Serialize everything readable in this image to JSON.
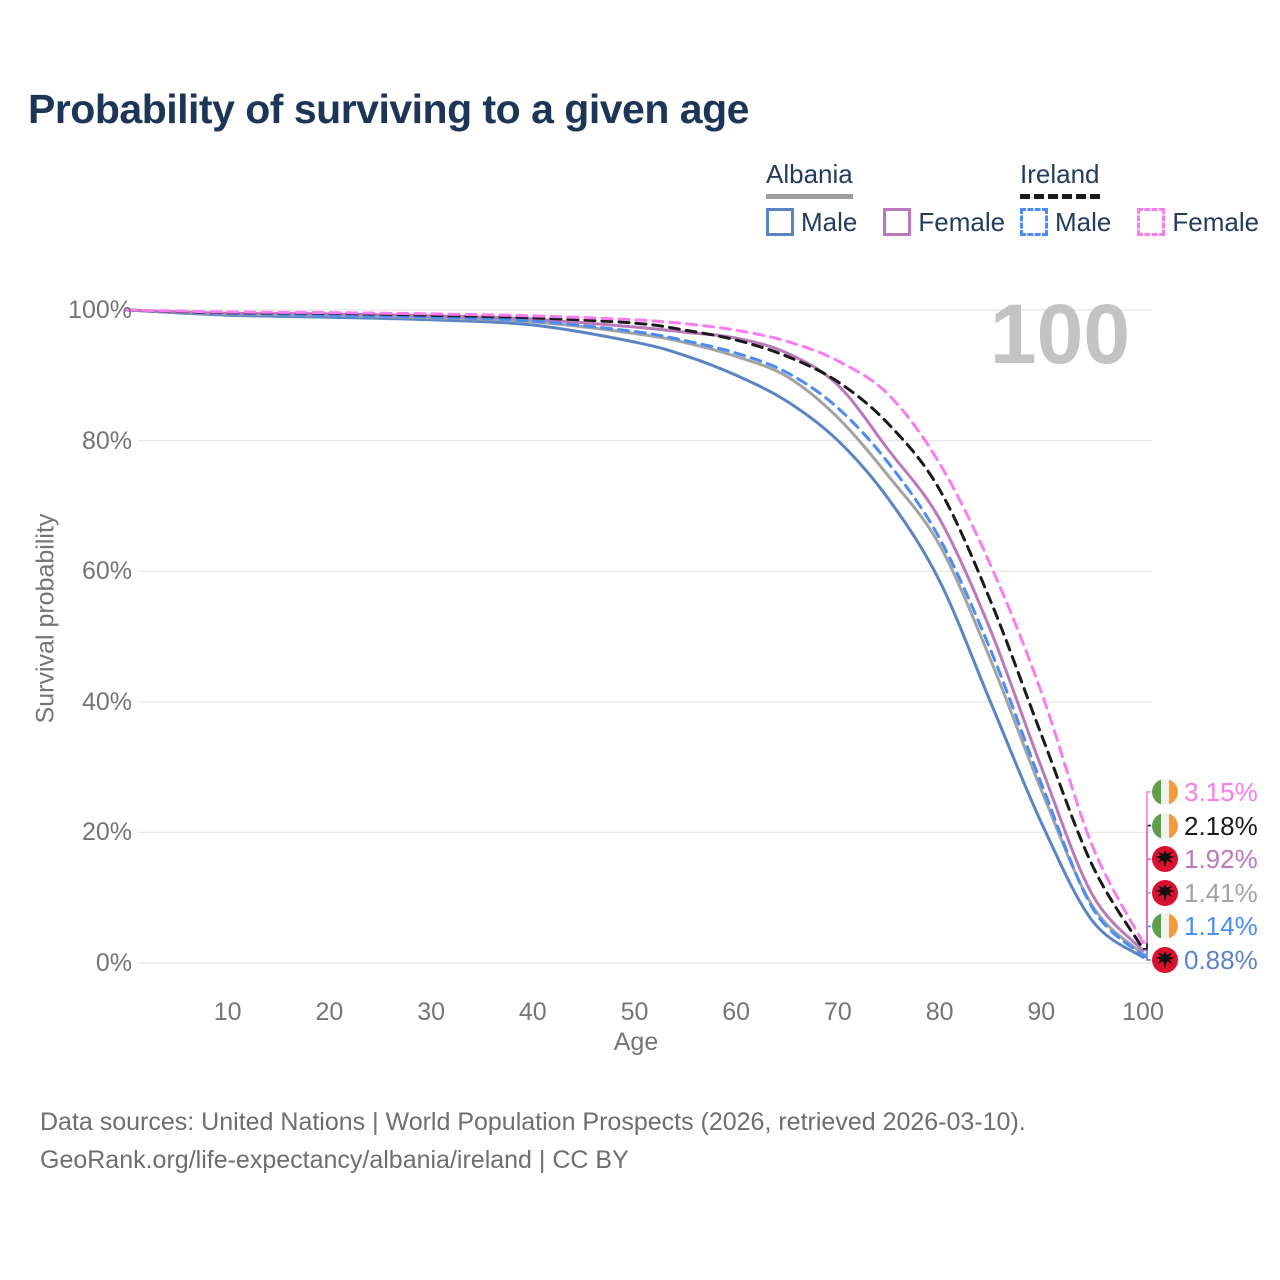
{
  "title": "Probability of surviving to a given age",
  "watermark_age": "100",
  "legend": {
    "groups": [
      {
        "country": "Albania",
        "line_style": "solid",
        "underline_color": "#9e9e9e",
        "items": [
          {
            "label": "Male",
            "color": "#5b84c4",
            "dash": false
          },
          {
            "label": "Female",
            "color": "#bb79bb",
            "dash": false
          }
        ]
      },
      {
        "country": "Ireland",
        "line_style": "dashed",
        "underline_color": "#1b1b1b",
        "items": [
          {
            "label": "Male",
            "color": "#4a8df7",
            "dash": true
          },
          {
            "label": "Female",
            "color": "#fb7cf0",
            "dash": true
          }
        ]
      }
    ]
  },
  "axes": {
    "x_label": "Age",
    "y_label": "Survival probability",
    "x_ticks": [
      "10",
      "20",
      "30",
      "40",
      "50",
      "60",
      "70",
      "80",
      "90",
      "100"
    ],
    "y_ticks": [
      "0%",
      "20%",
      "40%",
      "60%",
      "80%",
      "100%"
    ]
  },
  "end_labels": [
    {
      "flag": "ireland",
      "value": "3.15%",
      "color": "#fb7cf0"
    },
    {
      "flag": "ireland",
      "value": "2.18%",
      "color": "#1b1b1b"
    },
    {
      "flag": "albania",
      "value": "1.92%",
      "color": "#bb79bb"
    },
    {
      "flag": "albania",
      "value": "1.41%",
      "color": "#a3a3a3"
    },
    {
      "flag": "ireland",
      "value": "1.14%",
      "color": "#4a8df7"
    },
    {
      "flag": "albania",
      "value": "0.88%",
      "color": "#5b84c4"
    }
  ],
  "footer": {
    "line1": "Data sources: United Nations | World Population Prospects (2026, retrieved 2026-03-10).",
    "line2": "GeoRank.org/life-expectancy/albania/ireland | CC BY"
  },
  "chart_data": {
    "type": "line",
    "title": "Probability of surviving to a given age",
    "xlabel": "Age",
    "ylabel": "Survival probability",
    "x_range": [
      0,
      100
    ],
    "y_range_pct": [
      0,
      100
    ],
    "grid": "horizontal",
    "legend_position": "top-right",
    "ages": [
      0,
      10,
      20,
      30,
      40,
      50,
      55,
      60,
      65,
      70,
      75,
      80,
      85,
      90,
      95,
      100
    ],
    "series": [
      {
        "name": "Albania Male",
        "country": "Albania",
        "sex": "Male",
        "color": "#5b84c4",
        "dash": false,
        "label_row": 5,
        "final_pct": 0.88,
        "values": [
          100,
          99.2,
          98.9,
          98.5,
          97.7,
          95.1,
          93.0,
          90.0,
          86.0,
          80.0,
          71.0,
          58.5,
          40.0,
          21.5,
          6.5,
          0.88
        ]
      },
      {
        "name": "Albania Total",
        "country": "Albania",
        "sex": "Both",
        "color": "#a3a3a3",
        "dash": false,
        "label_row": 3,
        "final_pct": 1.41,
        "values": [
          100,
          99.4,
          99.2,
          98.8,
          98.2,
          96.4,
          95.0,
          92.9,
          89.8,
          83.5,
          74.5,
          64.0,
          46.5,
          26.5,
          8.8,
          1.41
        ]
      },
      {
        "name": "Albania Female",
        "country": "Albania",
        "sex": "Female",
        "color": "#bb79bb",
        "dash": false,
        "label_row": 2,
        "final_pct": 1.92,
        "values": [
          100,
          99.5,
          99.4,
          99.1,
          98.6,
          97.4,
          96.6,
          95.7,
          93.4,
          88.5,
          78.5,
          68.0,
          51.0,
          30.0,
          10.5,
          1.92
        ]
      },
      {
        "name": "Ireland Male",
        "country": "Ireland",
        "sex": "Male",
        "color": "#4a8df7",
        "dash": true,
        "label_row": 4,
        "final_pct": 1.14,
        "values": [
          100,
          99.5,
          99.2,
          98.9,
          98.3,
          96.7,
          95.3,
          93.4,
          90.4,
          85.0,
          76.5,
          65.0,
          48.0,
          27.5,
          8.5,
          1.14
        ]
      },
      {
        "name": "Ireland Total",
        "country": "Ireland",
        "sex": "Both",
        "color": "#1b1b1b",
        "dash": true,
        "label_row": 1,
        "final_pct": 2.18,
        "values": [
          100,
          99.6,
          99.5,
          99.2,
          98.8,
          98.0,
          96.9,
          95.4,
          92.9,
          89.0,
          82.5,
          72.5,
          55.5,
          35.0,
          15.0,
          2.18
        ]
      },
      {
        "name": "Ireland Female",
        "country": "Ireland",
        "sex": "Female",
        "color": "#fb7cf0",
        "dash": true,
        "label_row": 0,
        "final_pct": 3.15,
        "values": [
          100,
          99.7,
          99.6,
          99.4,
          99.1,
          98.5,
          97.9,
          96.9,
          95.2,
          92.2,
          87.0,
          76.5,
          61.0,
          41.5,
          18.0,
          3.15
        ]
      }
    ]
  }
}
